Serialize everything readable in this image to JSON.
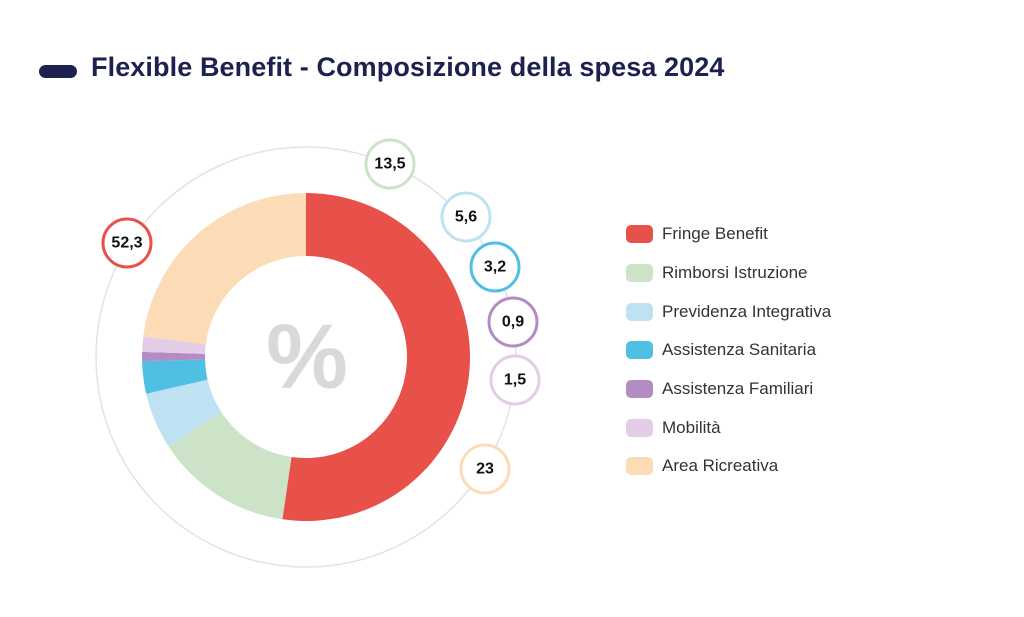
{
  "title": "Flexible Benefit - Composizione della spesa 2024",
  "center_symbol": "%",
  "chart_data": {
    "type": "pie",
    "variant": "donut",
    "title": "Flexible Benefit - Composizione della spesa 2024",
    "unit": "%",
    "slices": [
      {
        "label": "Fringe Benefit",
        "value": 52.3,
        "display": "52,3",
        "color": "#e8514a"
      },
      {
        "label": "Rimborsi Istruzione",
        "value": 13.5,
        "display": "13,5",
        "color": "#cce3c7"
      },
      {
        "label": "Previdenza Integrativa",
        "value": 5.6,
        "display": "5,6",
        "color": "#bfe2f2"
      },
      {
        "label": "Assistenza Sanitaria",
        "value": 3.2,
        "display": "3,2",
        "color": "#4fbfe3"
      },
      {
        "label": "Assistenza Familiari",
        "value": 0.9,
        "display": "0,9",
        "color": "#b48cc4"
      },
      {
        "label": "Mobilità",
        "value": 1.5,
        "display": "1,5",
        "color": "#e3cce6"
      },
      {
        "label": "Area Ricreativa",
        "value": 23,
        "display": "23",
        "color": "#fcdcb6"
      }
    ],
    "legend_position": "right"
  }
}
